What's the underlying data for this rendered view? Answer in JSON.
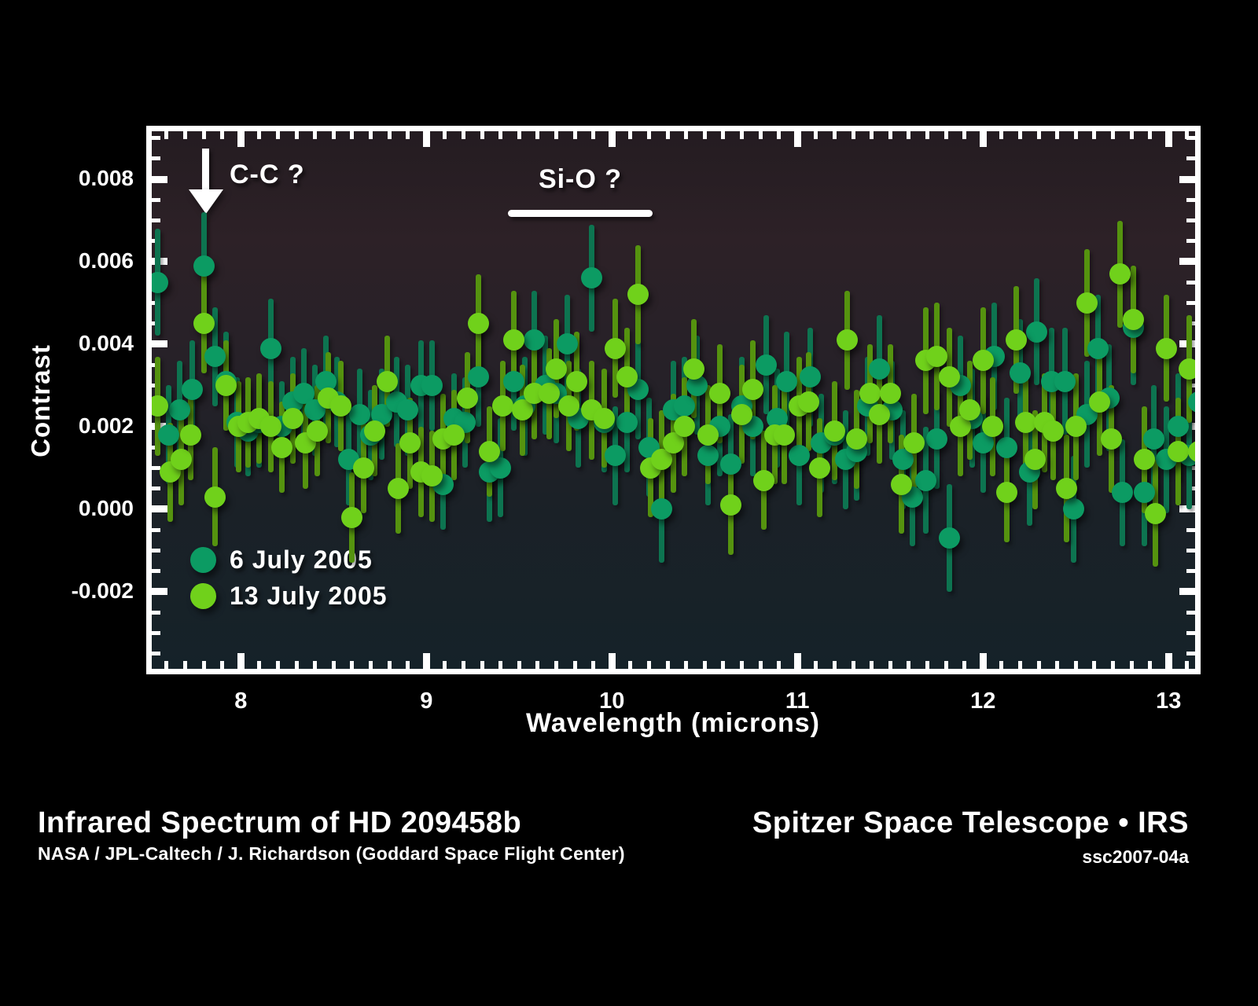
{
  "figure": {
    "title": "Infrared Spectrum of HD 209458b",
    "credit": "NASA /  JPL-Caltech /  J. Richardson (Goddard Space Flight Center)",
    "instrument": "Spitzer Space Telescope • IRS",
    "image_id": "ssc2007-04a"
  },
  "colors": {
    "page_bg": "#000000",
    "plot_border": "#ffffff",
    "text": "#ffffff",
    "plot_bg_gradient": [
      "#241c21",
      "#2d2127",
      "#262128",
      "#1b2127",
      "#152229"
    ],
    "teal_dot": "#0c9b63",
    "teal_bar": "#0d7450",
    "green_dot": "#70d11b",
    "green_bar": "#55930f"
  },
  "chart_data": {
    "type": "scatter",
    "title": "",
    "xlabel": "Wavelength (microns)",
    "ylabel": "Contrast",
    "xlim": [
      7.52,
      13.143
    ],
    "ylim": [
      -0.003867,
      0.009162
    ],
    "grid": false,
    "legend_position": "inside-bottom-left",
    "x_major_ticks": [
      8,
      9,
      10,
      11,
      12,
      13
    ],
    "x_tick_labels": [
      "8",
      "9",
      "10",
      "11",
      "12",
      "13"
    ],
    "x_minor_step": 0.1,
    "y_major_ticks": [
      0.008,
      0.006,
      0.004,
      0.002,
      0.0,
      -0.002
    ],
    "y_tick_labels": [
      "0.008",
      "0.006",
      "0.004",
      "0.002",
      "0.000",
      "-0.002"
    ],
    "y_minor_step": 0.0005,
    "annotations": [
      {
        "type": "arrow-down",
        "label": "C-C ?",
        "x": 7.81
      },
      {
        "type": "band-line",
        "label": "Si-O ?",
        "x_start": 9.44,
        "x_end": 10.22
      }
    ],
    "series": [
      {
        "name": "6 July 2005",
        "color": "#0c9b63",
        "bar_color": "#0d7450",
        "points": [
          [
            7.55,
            0.0055,
            0.0013
          ],
          [
            7.61,
            0.0018,
            0.0012
          ],
          [
            7.67,
            0.0024,
            0.0012
          ],
          [
            7.74,
            0.0029,
            0.0012
          ],
          [
            7.8,
            0.0059,
            0.0013
          ],
          [
            7.86,
            0.0037,
            0.0012
          ],
          [
            7.92,
            0.0031,
            0.0012
          ],
          [
            7.98,
            0.0021,
            0.0011
          ],
          [
            8.04,
            0.0019,
            0.0011
          ],
          [
            8.1,
            0.0021,
            0.0011
          ],
          [
            8.16,
            0.0039,
            0.0012
          ],
          [
            8.22,
            0.002,
            0.0011
          ],
          [
            8.28,
            0.0026,
            0.0011
          ],
          [
            8.34,
            0.0028,
            0.0011
          ],
          [
            8.4,
            0.0024,
            0.0011
          ],
          [
            8.46,
            0.0031,
            0.0011
          ],
          [
            8.52,
            0.0026,
            0.0011
          ],
          [
            8.58,
            0.0012,
            0.0011
          ],
          [
            8.64,
            0.0023,
            0.0011
          ],
          [
            8.7,
            0.0018,
            0.0011
          ],
          [
            8.76,
            0.0023,
            0.0011
          ],
          [
            8.84,
            0.0026,
            0.0011
          ],
          [
            8.9,
            0.0024,
            0.0011
          ],
          [
            8.97,
            0.003,
            0.0011
          ],
          [
            9.03,
            0.003,
            0.0011
          ],
          [
            9.09,
            0.0006,
            0.0011
          ],
          [
            9.15,
            0.0022,
            0.0011
          ],
          [
            9.21,
            0.0021,
            0.0011
          ],
          [
            9.28,
            0.0032,
            0.0012
          ],
          [
            9.34,
            0.0009,
            0.0012
          ],
          [
            9.4,
            0.001,
            0.0012
          ],
          [
            9.47,
            0.0031,
            0.0012
          ],
          [
            9.53,
            0.0025,
            0.0012
          ],
          [
            9.58,
            0.0041,
            0.0012
          ],
          [
            9.64,
            0.003,
            0.0012
          ],
          [
            9.7,
            0.0028,
            0.0012
          ],
          [
            9.76,
            0.004,
            0.0012
          ],
          [
            9.82,
            0.0022,
            0.0012
          ],
          [
            9.89,
            0.0056,
            0.0013
          ],
          [
            9.96,
            0.0021,
            0.0012
          ],
          [
            10.02,
            0.0013,
            0.0012
          ],
          [
            10.08,
            0.0021,
            0.0012
          ],
          [
            10.14,
            0.0029,
            0.0012
          ],
          [
            10.2,
            0.0015,
            0.0012
          ],
          [
            10.27,
            0.0,
            0.0013
          ],
          [
            10.33,
            0.0024,
            0.0012
          ],
          [
            10.39,
            0.0025,
            0.0012
          ],
          [
            10.46,
            0.003,
            0.0012
          ],
          [
            10.52,
            0.0013,
            0.0012
          ],
          [
            10.58,
            0.002,
            0.0012
          ],
          [
            10.64,
            0.0011,
            0.0012
          ],
          [
            10.7,
            0.0025,
            0.0012
          ],
          [
            10.76,
            0.002,
            0.0012
          ],
          [
            10.83,
            0.0035,
            0.0012
          ],
          [
            10.89,
            0.0022,
            0.0012
          ],
          [
            10.94,
            0.0031,
            0.0012
          ],
          [
            11.01,
            0.0013,
            0.0012
          ],
          [
            11.07,
            0.0032,
            0.0012
          ],
          [
            11.13,
            0.0016,
            0.0012
          ],
          [
            11.2,
            0.0018,
            0.0012
          ],
          [
            11.26,
            0.0012,
            0.0012
          ],
          [
            11.32,
            0.0014,
            0.0012
          ],
          [
            11.38,
            0.0025,
            0.0012
          ],
          [
            11.44,
            0.0034,
            0.0013
          ],
          [
            11.51,
            0.0024,
            0.0012
          ],
          [
            11.57,
            0.0012,
            0.0012
          ],
          [
            11.62,
            0.0003,
            0.0012
          ],
          [
            11.69,
            0.0007,
            0.0013
          ],
          [
            11.75,
            0.0017,
            0.0012
          ],
          [
            11.82,
            -0.0007,
            0.0013
          ],
          [
            11.88,
            0.003,
            0.0012
          ],
          [
            11.94,
            0.0022,
            0.0012
          ],
          [
            12.0,
            0.0016,
            0.0012
          ],
          [
            12.06,
            0.0037,
            0.0013
          ],
          [
            12.13,
            0.0015,
            0.0012
          ],
          [
            12.2,
            0.0033,
            0.0013
          ],
          [
            12.25,
            0.0009,
            0.0013
          ],
          [
            12.29,
            0.0043,
            0.0013
          ],
          [
            12.37,
            0.0031,
            0.0013
          ],
          [
            12.44,
            0.0031,
            0.0013
          ],
          [
            12.49,
            0.0,
            0.0013
          ],
          [
            12.56,
            0.0023,
            0.0013
          ],
          [
            12.62,
            0.0039,
            0.0013
          ],
          [
            12.68,
            0.0027,
            0.0013
          ],
          [
            12.75,
            0.0004,
            0.0013
          ],
          [
            12.81,
            0.0044,
            0.0014
          ],
          [
            12.87,
            0.0004,
            0.0013
          ],
          [
            12.92,
            0.0017,
            0.0013
          ],
          [
            12.99,
            0.0012,
            0.0013
          ],
          [
            13.05,
            0.002,
            0.0013
          ],
          [
            13.11,
            0.0013,
            0.0013
          ],
          [
            13.16,
            0.0026,
            0.0014
          ]
        ]
      },
      {
        "name": "13 July 2005",
        "color": "#70d11b",
        "bar_color": "#55930f",
        "points": [
          [
            7.55,
            0.0025,
            0.0012
          ],
          [
            7.62,
            0.0009,
            0.0012
          ],
          [
            7.68,
            0.0012,
            0.0011
          ],
          [
            7.73,
            0.0018,
            0.0011
          ],
          [
            7.8,
            0.0045,
            0.0012
          ],
          [
            7.86,
            0.0003,
            0.0012
          ],
          [
            7.92,
            0.003,
            0.0011
          ],
          [
            7.99,
            0.002,
            0.0011
          ],
          [
            8.04,
            0.0021,
            0.0011
          ],
          [
            8.1,
            0.0022,
            0.0011
          ],
          [
            8.16,
            0.002,
            0.0011
          ],
          [
            8.22,
            0.0015,
            0.0011
          ],
          [
            8.28,
            0.0022,
            0.0011
          ],
          [
            8.35,
            0.0016,
            0.0011
          ],
          [
            8.41,
            0.0019,
            0.0011
          ],
          [
            8.47,
            0.0027,
            0.0011
          ],
          [
            8.54,
            0.0025,
            0.0011
          ],
          [
            8.6,
            -0.0002,
            0.0011
          ],
          [
            8.66,
            0.001,
            0.0011
          ],
          [
            8.72,
            0.0019,
            0.0011
          ],
          [
            8.79,
            0.0031,
            0.0011
          ],
          [
            8.85,
            0.0005,
            0.0011
          ],
          [
            8.91,
            0.0016,
            0.0011
          ],
          [
            8.97,
            0.0009,
            0.0011
          ],
          [
            9.03,
            0.0008,
            0.0011
          ],
          [
            9.09,
            0.0017,
            0.0011
          ],
          [
            9.15,
            0.0018,
            0.0011
          ],
          [
            9.22,
            0.0027,
            0.0011
          ],
          [
            9.28,
            0.0045,
            0.0012
          ],
          [
            9.34,
            0.0014,
            0.0011
          ],
          [
            9.41,
            0.0025,
            0.0011
          ],
          [
            9.47,
            0.0041,
            0.0012
          ],
          [
            9.52,
            0.0024,
            0.0011
          ],
          [
            9.58,
            0.0028,
            0.0011
          ],
          [
            9.66,
            0.0028,
            0.0011
          ],
          [
            9.7,
            0.0034,
            0.0012
          ],
          [
            9.77,
            0.0025,
            0.0011
          ],
          [
            9.81,
            0.0031,
            0.0012
          ],
          [
            9.89,
            0.0024,
            0.0012
          ],
          [
            9.96,
            0.0022,
            0.0012
          ],
          [
            10.02,
            0.0039,
            0.0012
          ],
          [
            10.08,
            0.0032,
            0.0012
          ],
          [
            10.14,
            0.0052,
            0.0012
          ],
          [
            10.21,
            0.001,
            0.0012
          ],
          [
            10.27,
            0.0012,
            0.0012
          ],
          [
            10.33,
            0.0016,
            0.0012
          ],
          [
            10.39,
            0.002,
            0.0012
          ],
          [
            10.44,
            0.0034,
            0.0012
          ],
          [
            10.52,
            0.0018,
            0.0012
          ],
          [
            10.58,
            0.0028,
            0.0012
          ],
          [
            10.64,
            0.0001,
            0.0012
          ],
          [
            10.7,
            0.0023,
            0.0012
          ],
          [
            10.76,
            0.0029,
            0.0012
          ],
          [
            10.82,
            0.0007,
            0.0012
          ],
          [
            10.88,
            0.0018,
            0.0012
          ],
          [
            10.93,
            0.0018,
            0.0012
          ],
          [
            11.01,
            0.0025,
            0.0012
          ],
          [
            11.06,
            0.0026,
            0.0012
          ],
          [
            11.12,
            0.001,
            0.0012
          ],
          [
            11.2,
            0.0019,
            0.0012
          ],
          [
            11.27,
            0.0041,
            0.0012
          ],
          [
            11.32,
            0.0017,
            0.0012
          ],
          [
            11.39,
            0.0028,
            0.0012
          ],
          [
            11.44,
            0.0023,
            0.0012
          ],
          [
            11.5,
            0.0028,
            0.0012
          ],
          [
            11.56,
            0.0006,
            0.0012
          ],
          [
            11.63,
            0.0016,
            0.0012
          ],
          [
            11.69,
            0.0036,
            0.0013
          ],
          [
            11.75,
            0.0037,
            0.0013
          ],
          [
            11.82,
            0.0032,
            0.0012
          ],
          [
            11.88,
            0.002,
            0.0012
          ],
          [
            11.93,
            0.0024,
            0.0012
          ],
          [
            12.0,
            0.0036,
            0.0013
          ],
          [
            12.05,
            0.002,
            0.0012
          ],
          [
            12.13,
            0.0004,
            0.0012
          ],
          [
            12.18,
            0.0041,
            0.0013
          ],
          [
            12.23,
            0.0021,
            0.0012
          ],
          [
            12.28,
            0.0012,
            0.0012
          ],
          [
            12.33,
            0.0021,
            0.0012
          ],
          [
            12.38,
            0.0019,
            0.0012
          ],
          [
            12.45,
            0.0005,
            0.0013
          ],
          [
            12.5,
            0.002,
            0.0013
          ],
          [
            12.56,
            0.005,
            0.0013
          ],
          [
            12.63,
            0.0026,
            0.0013
          ],
          [
            12.69,
            0.0017,
            0.0013
          ],
          [
            12.74,
            0.0057,
            0.0013
          ],
          [
            12.81,
            0.0046,
            0.0013
          ],
          [
            12.87,
            0.0012,
            0.0013
          ],
          [
            12.93,
            -0.0001,
            0.0013
          ],
          [
            12.99,
            0.0039,
            0.0013
          ],
          [
            13.05,
            0.0014,
            0.0013
          ],
          [
            13.11,
            0.0034,
            0.0013
          ],
          [
            13.16,
            0.0014,
            0.0013
          ]
        ]
      }
    ]
  }
}
